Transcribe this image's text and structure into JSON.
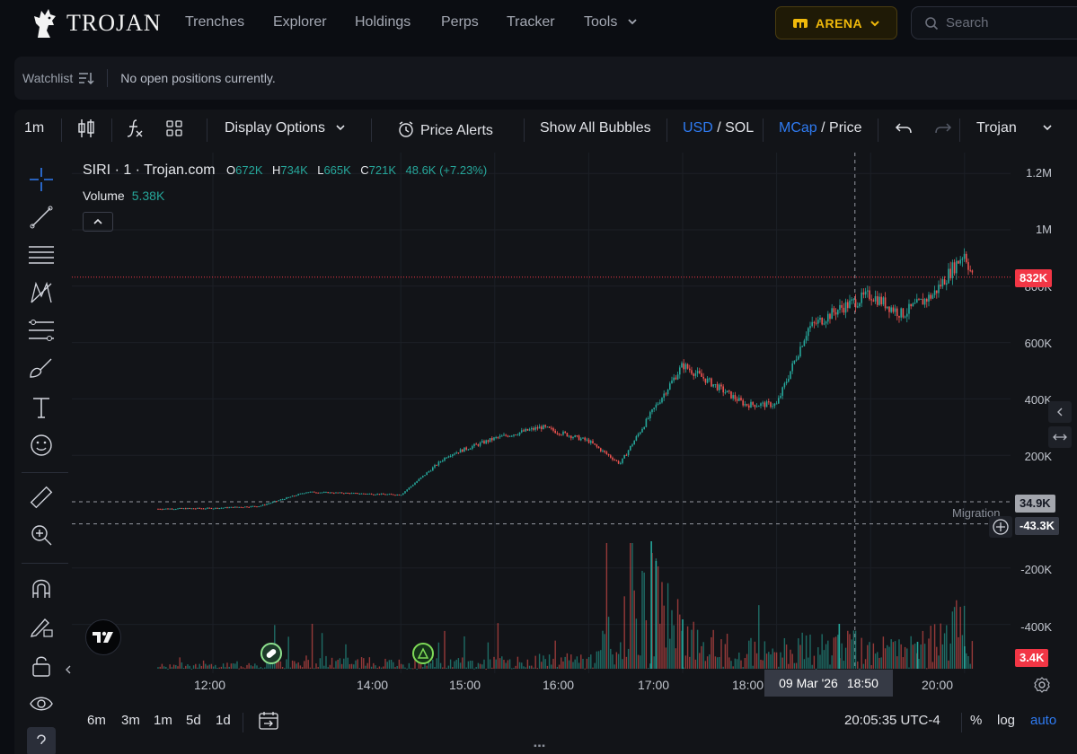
{
  "brand": {
    "name": "TROJAN"
  },
  "nav": {
    "items": [
      "Trenches",
      "Explorer",
      "Holdings",
      "Perps",
      "Tracker",
      "Tools"
    ],
    "arena_label": "ARENA",
    "search_placeholder": "Search"
  },
  "watchlist": {
    "label": "Watchlist",
    "message": "No open positions currently."
  },
  "toolbar": {
    "interval": "1m",
    "display_options": "Display Options",
    "price_alerts": "Price Alerts",
    "show_bubbles": "Show All Bubbles",
    "currency_a": "USD",
    "currency_sep": " / ",
    "currency_b": "SOL",
    "metric_a": "MCap",
    "metric_sep": " / ",
    "metric_b": "Price",
    "layout_name": "Trojan"
  },
  "legend": {
    "symbol": "SIRI · 1 · Trojan.com",
    "o_key": "O",
    "o_val": "672K",
    "h_key": "H",
    "h_val": "734K",
    "l_key": "L",
    "l_val": "665K",
    "c_key": "C",
    "c_val": "721K",
    "change": "48.6K (+7.23%)",
    "volume_label": "Volume",
    "volume_val": "5.38K"
  },
  "price_axis": {
    "ticks": [
      "1.2M",
      "1M",
      "800K",
      "600K",
      "400K",
      "200K",
      "-200K",
      "-400K"
    ],
    "last_price_tag": "832K",
    "crosshair_tag": "34.9K",
    "migration_tag": "-43.3K",
    "volume_tag": "3.4K",
    "migration_label": "Migration"
  },
  "time_axis": {
    "ticks": [
      "12:00",
      "14:00",
      "15:00",
      "16:00",
      "17:00",
      "18:00",
      "20:00"
    ],
    "crosshair_date": "09 Mar '26",
    "crosshair_time": "18:50"
  },
  "bottom": {
    "ranges": [
      "6m",
      "3m",
      "1m",
      "5d",
      "1d"
    ],
    "clock": "20:05:35 UTC-4",
    "percent": "%",
    "log": "log",
    "auto": "auto"
  },
  "colors": {
    "up": "#26a69a",
    "down": "#ef5350",
    "accent_blue": "#2f7bf2",
    "arena_gold": "#f0b90b",
    "price_tag": "#f23645",
    "background": "#121418"
  },
  "chart_data": {
    "type": "candlestick",
    "title": "SIRI · 1 · Trojan.com",
    "x_ticks": [
      "12:00",
      "14:00",
      "15:00",
      "16:00",
      "17:00",
      "18:00",
      "20:00"
    ],
    "y_ticks": [
      "1.2M",
      "1M",
      "800K",
      "600K",
      "400K",
      "200K"
    ],
    "series": [
      {
        "name": "MCap",
        "x": [
          "11:25",
          "12:00",
          "12:30",
          "13:00",
          "13:30",
          "14:00",
          "14:30",
          "15:00",
          "15:30",
          "16:00",
          "16:20",
          "16:40",
          "17:00",
          "17:20",
          "17:40",
          "18:00",
          "18:20",
          "18:40",
          "19:00",
          "19:20",
          "19:40",
          "20:00",
          "20:05"
        ],
        "values": [
          10000,
          12000,
          20000,
          70000,
          65000,
          60000,
          200000,
          260000,
          300000,
          250000,
          170000,
          350000,
          520000,
          450000,
          380000,
          380000,
          650000,
          720000,
          770000,
          700000,
          770000,
          920000,
          832000
        ]
      }
    ],
    "volume": {
      "x": [
        "12:00",
        "13:00",
        "14:00",
        "15:00",
        "16:00",
        "16:40",
        "17:00",
        "17:30",
        "18:00",
        "18:40",
        "19:00",
        "19:30",
        "20:00"
      ],
      "values": [
        200,
        600,
        400,
        500,
        700,
        5000,
        2000,
        1500,
        1200,
        1800,
        1300,
        1400,
        3400
      ]
    }
  }
}
